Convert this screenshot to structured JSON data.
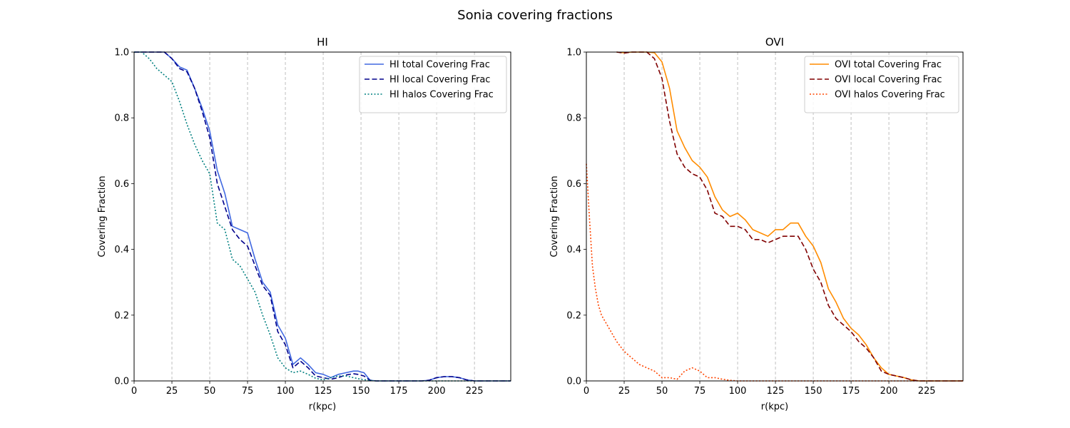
{
  "figure": {
    "suptitle": "Sonia covering fractions"
  },
  "chart_data": [
    {
      "type": "line",
      "title": "HI",
      "xlabel": "r(kpc)",
      "ylabel": "Covering Fraction",
      "xlim": [
        0,
        249
      ],
      "ylim": [
        0,
        1.0
      ],
      "xticks": [
        0,
        25,
        50,
        75,
        100,
        125,
        150,
        175,
        200,
        225
      ],
      "xtick_labels": [
        "0",
        "25",
        "50",
        "75",
        "100",
        "125",
        "150",
        "175",
        "200",
        "225"
      ],
      "yticks": [
        0,
        0.2,
        0.4,
        0.6,
        0.8,
        1.0
      ],
      "ytick_labels": [
        "0.0",
        "0.2",
        "0.4",
        "0.6",
        "0.8",
        "1.0"
      ],
      "grid": "x-only, dashed gray",
      "legend_loc": "upper right",
      "series": [
        {
          "name": "HI total Covering Frac",
          "color": "#4169e1",
          "style": "solid",
          "x": [
            0,
            10,
            20,
            25,
            30,
            35,
            40,
            45,
            50,
            55,
            60,
            65,
            70,
            75,
            80,
            85,
            90,
            95,
            100,
            105,
            110,
            115,
            120,
            125,
            130,
            135,
            140,
            145,
            148,
            152,
            156,
            160,
            170,
            180,
            190,
            195,
            200,
            205,
            210,
            215,
            220,
            225,
            230,
            240,
            249
          ],
          "y": [
            1.0,
            1.0,
            1.0,
            0.98,
            0.955,
            0.945,
            0.89,
            0.83,
            0.76,
            0.64,
            0.57,
            0.47,
            0.46,
            0.45,
            0.37,
            0.3,
            0.27,
            0.17,
            0.13,
            0.05,
            0.07,
            0.05,
            0.025,
            0.02,
            0.01,
            0.02,
            0.025,
            0.03,
            0.03,
            0.025,
            0.002,
            0.0,
            0.0,
            0.0,
            0.0,
            0.002,
            0.01,
            0.013,
            0.013,
            0.01,
            0.003,
            0.0,
            0.0,
            0.0,
            0.0
          ]
        },
        {
          "name": "HI local Covering Frac",
          "color": "#00008b",
          "style": "dashed",
          "x": [
            0,
            10,
            20,
            25,
            30,
            35,
            40,
            45,
            50,
            55,
            60,
            65,
            70,
            75,
            80,
            85,
            90,
            95,
            100,
            105,
            110,
            115,
            120,
            125,
            130,
            135,
            140,
            145,
            148,
            152,
            156,
            160,
            170,
            180,
            190,
            195,
            200,
            205,
            210,
            215,
            220,
            225,
            230,
            240,
            249
          ],
          "y": [
            1.0,
            1.0,
            1.0,
            0.98,
            0.95,
            0.94,
            0.89,
            0.82,
            0.74,
            0.6,
            0.53,
            0.46,
            0.43,
            0.41,
            0.35,
            0.29,
            0.26,
            0.15,
            0.11,
            0.04,
            0.06,
            0.04,
            0.015,
            0.01,
            0.005,
            0.01,
            0.018,
            0.022,
            0.02,
            0.015,
            0.002,
            0.0,
            0.0,
            0.0,
            0.0,
            0.002,
            0.01,
            0.013,
            0.013,
            0.01,
            0.003,
            0.0,
            0.0,
            0.0,
            0.0
          ]
        },
        {
          "name": "HI halos Covering Frac",
          "color": "#008080",
          "style": "dotted",
          "x": [
            0,
            5,
            10,
            15,
            20,
            25,
            30,
            35,
            40,
            45,
            50,
            55,
            60,
            65,
            70,
            75,
            80,
            85,
            90,
            95,
            100,
            105,
            110,
            115,
            120,
            125,
            130,
            135,
            140,
            145,
            150,
            155,
            160,
            170,
            180,
            190,
            200,
            210,
            220,
            230,
            240,
            249
          ],
          "y": [
            1.0,
            1.0,
            0.98,
            0.95,
            0.93,
            0.91,
            0.85,
            0.78,
            0.72,
            0.67,
            0.63,
            0.48,
            0.46,
            0.37,
            0.35,
            0.31,
            0.27,
            0.2,
            0.14,
            0.07,
            0.04,
            0.025,
            0.03,
            0.02,
            0.008,
            0.003,
            0.01,
            0.015,
            0.015,
            0.01,
            0.005,
            0.002,
            0.0,
            0.0,
            0.0,
            0.0,
            0.0,
            0.0,
            0.0,
            0.0,
            0.0,
            0.0
          ]
        }
      ]
    },
    {
      "type": "line",
      "title": "OVI",
      "xlabel": "r(kpc)",
      "ylabel": "Covering Fraction",
      "xlim": [
        0,
        249
      ],
      "ylim": [
        0,
        1.0
      ],
      "xticks": [
        0,
        25,
        50,
        75,
        100,
        125,
        150,
        175,
        200,
        225
      ],
      "xtick_labels": [
        "0",
        "25",
        "50",
        "75",
        "100",
        "125",
        "150",
        "175",
        "200",
        "225"
      ],
      "yticks": [
        0,
        0.2,
        0.4,
        0.6,
        0.8,
        1.0
      ],
      "ytick_labels": [
        "0.0",
        "0.2",
        "0.4",
        "0.6",
        "0.8",
        "1.0"
      ],
      "grid": "x-only, dashed gray",
      "legend_loc": "upper right",
      "series": [
        {
          "name": "OVI total Covering Frac",
          "color": "#ff8c00",
          "style": "solid",
          "x": [
            20,
            25,
            30,
            35,
            40,
            45,
            50,
            55,
            60,
            65,
            70,
            75,
            80,
            85,
            90,
            95,
            100,
            105,
            110,
            115,
            120,
            125,
            130,
            135,
            140,
            145,
            150,
            155,
            160,
            165,
            170,
            175,
            180,
            185,
            190,
            195,
            200,
            205,
            210,
            215,
            220,
            230,
            249
          ],
          "y": [
            1.0,
            0.998,
            1.0,
            1.0,
            1.0,
            0.998,
            0.97,
            0.89,
            0.76,
            0.71,
            0.67,
            0.65,
            0.62,
            0.56,
            0.52,
            0.5,
            0.51,
            0.49,
            0.46,
            0.45,
            0.44,
            0.46,
            0.46,
            0.48,
            0.48,
            0.44,
            0.41,
            0.36,
            0.28,
            0.24,
            0.19,
            0.16,
            0.14,
            0.11,
            0.07,
            0.04,
            0.02,
            0.015,
            0.01,
            0.003,
            0.0,
            0.0,
            0.0
          ]
        },
        {
          "name": "OVI local Covering Frac",
          "color": "#800000",
          "style": "dashed",
          "x": [
            20,
            25,
            30,
            35,
            40,
            45,
            50,
            55,
            60,
            65,
            70,
            75,
            80,
            85,
            90,
            95,
            100,
            105,
            110,
            115,
            120,
            125,
            130,
            135,
            140,
            145,
            150,
            155,
            160,
            165,
            170,
            175,
            180,
            185,
            190,
            195,
            200,
            205,
            210,
            215,
            220,
            230,
            249
          ],
          "y": [
            1.0,
            0.997,
            1.0,
            1.0,
            1.0,
            0.98,
            0.92,
            0.79,
            0.69,
            0.65,
            0.63,
            0.62,
            0.58,
            0.51,
            0.5,
            0.47,
            0.47,
            0.46,
            0.43,
            0.43,
            0.42,
            0.43,
            0.44,
            0.44,
            0.44,
            0.4,
            0.34,
            0.3,
            0.23,
            0.19,
            0.17,
            0.15,
            0.12,
            0.1,
            0.07,
            0.03,
            0.02,
            0.015,
            0.01,
            0.003,
            0.0,
            0.0,
            0.0
          ]
        },
        {
          "name": "OVI halos Covering Frac",
          "color": "#ff4500",
          "style": "dotted",
          "x": [
            0,
            2,
            4,
            6,
            8,
            10,
            15,
            20,
            25,
            30,
            35,
            40,
            45,
            50,
            55,
            60,
            65,
            70,
            75,
            80,
            85,
            90,
            95,
            100,
            110,
            120,
            130,
            140,
            150,
            160,
            170,
            180,
            190,
            200,
            210,
            220,
            230,
            240,
            249
          ],
          "y": [
            0.66,
            0.5,
            0.35,
            0.28,
            0.23,
            0.2,
            0.16,
            0.12,
            0.09,
            0.07,
            0.05,
            0.04,
            0.03,
            0.01,
            0.01,
            0.005,
            0.03,
            0.04,
            0.03,
            0.01,
            0.01,
            0.005,
            0.002,
            0.0,
            0.0,
            0.0,
            0.0,
            0.0,
            0.0,
            0.0,
            0.0,
            0.0,
            0.0,
            0.0,
            0.0,
            0.0,
            0.0,
            0.0,
            0.0
          ]
        }
      ]
    }
  ]
}
